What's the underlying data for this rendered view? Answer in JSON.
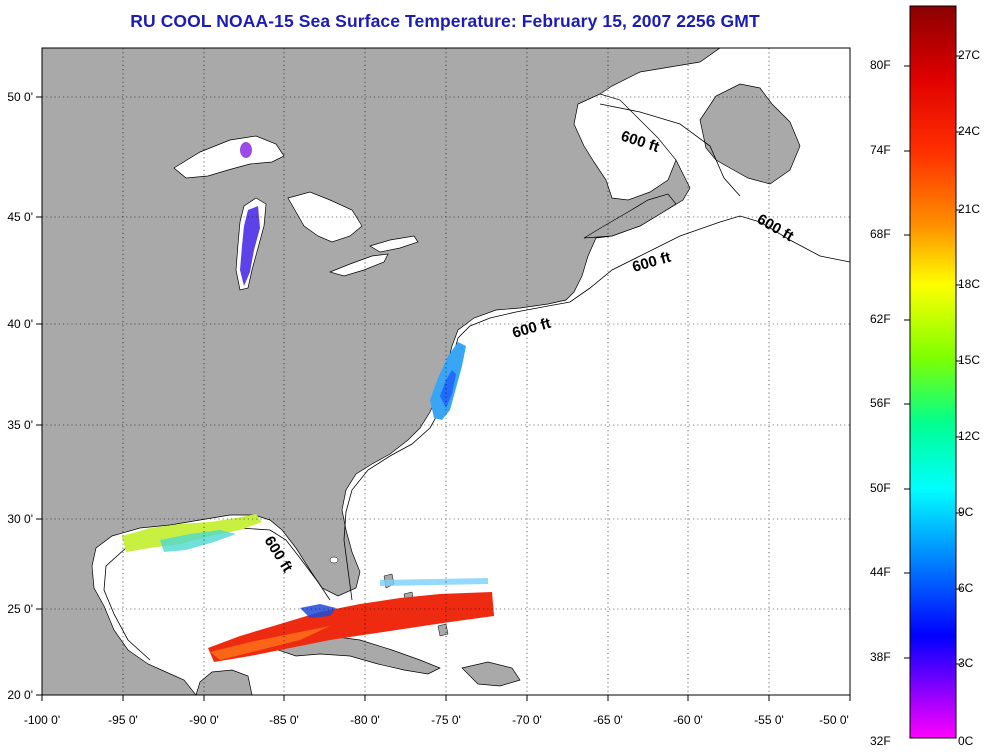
{
  "title": "RU COOL  NOAA-15  Sea Surface Temperature:  February 15, 2007 2256 GMT",
  "map": {
    "lon_range": [
      -100,
      -50
    ],
    "lat_range": [
      20,
      52.5
    ],
    "lon_ticks": [
      "-100 0'",
      "-95 0'",
      "-90 0'",
      "-85 0'",
      "-80 0'",
      "-75 0'",
      "-70 0'",
      "-65 0'",
      "-60 0'",
      "-55 0'",
      "-50 0'"
    ],
    "lat_ticks": [
      "50 0'",
      "45 0'",
      "40 0'",
      "35 0'",
      "30 0'",
      "25 0'",
      "20 0'"
    ],
    "grid": "dotted",
    "land_color": "#a9a9a9",
    "ocean_color": "#ffffff",
    "contour_labels": [
      "600 ft",
      "600 ft",
      "600 ft",
      "600 ft",
      "600 ft"
    ]
  },
  "colorbar": {
    "fahrenheit_labels": [
      "80F",
      "74F",
      "68F",
      "62F",
      "56F",
      "50F",
      "44F",
      "38F",
      "32F"
    ],
    "celsius_labels": [
      "27C",
      "24C",
      "21C",
      "18C",
      "15C",
      "12C",
      "9C",
      "6C",
      "3C",
      "0C"
    ],
    "colors_top_to_bottom": [
      "#8b0000",
      "#ff0000",
      "#ff8c00",
      "#ffff00",
      "#7fff00",
      "#00ff7f",
      "#00ffff",
      "#0080ff",
      "#0000ff",
      "#8000ff",
      "#ff00ff"
    ]
  }
}
